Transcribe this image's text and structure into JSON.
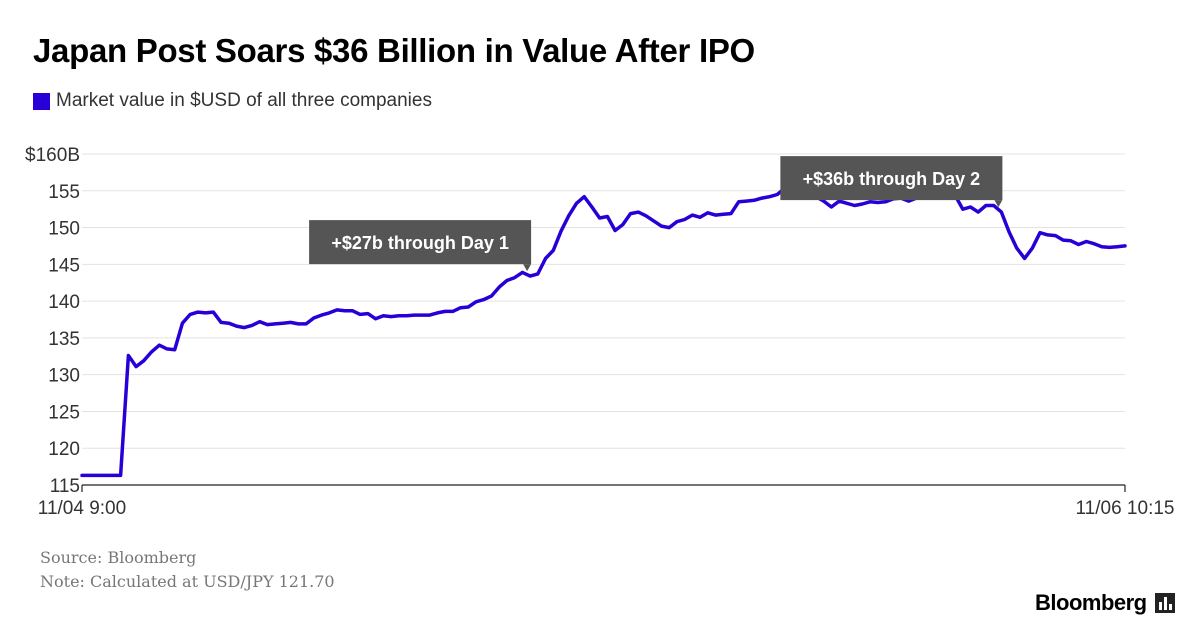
{
  "title": "Japan Post Soars $36 Billion in Value After IPO",
  "footer": {
    "source": "Source: Bloomberg",
    "note": "Note: Calculated at USD/JPY 121.70",
    "brand": "Bloomberg",
    "brand_icon": "bar-chart-icon"
  },
  "colors": {
    "series": "#2800d7",
    "annotation_bg": "#555555",
    "grid": "#e3e3e3"
  },
  "chart_data": {
    "type": "line",
    "legend": "Market value in $USD of all three companies",
    "xlabel": "",
    "ylabel": "",
    "x_tick_labels": [
      "11/04 9:00",
      "11/06 10:15"
    ],
    "ylim": [
      115,
      160
    ],
    "yticks": [
      115,
      120,
      125,
      130,
      135,
      140,
      145,
      150,
      155,
      160
    ],
    "ytick_labels": [
      "115",
      "120",
      "125",
      "130",
      "135",
      "140",
      "145",
      "150",
      "155",
      "$160B"
    ],
    "grid": true,
    "series": [
      {
        "name": "Market value in $USD of all three companies",
        "values": [
          116.3,
          116.3,
          116.3,
          116.3,
          116.3,
          116.3,
          132.6,
          131.1,
          131.9,
          133.1,
          134.0,
          133.5,
          133.4,
          137.0,
          138.2,
          138.5,
          138.4,
          138.5,
          137.1,
          137.0,
          136.6,
          136.4,
          136.7,
          137.2,
          136.8,
          136.9,
          137.0,
          137.1,
          136.9,
          136.9,
          137.7,
          138.1,
          138.4,
          138.8,
          138.7,
          138.7,
          138.2,
          138.3,
          137.6,
          138.0,
          137.9,
          138.0,
          138.0,
          138.1,
          138.1,
          138.1,
          138.4,
          138.6,
          138.6,
          139.1,
          139.2,
          139.9,
          140.2,
          140.7,
          141.9,
          142.8,
          143.2,
          143.9,
          143.4,
          143.7,
          145.8,
          146.9,
          149.5,
          151.6,
          153.3,
          154.2,
          152.8,
          151.3,
          151.5,
          149.6,
          150.4,
          151.9,
          152.1,
          151.6,
          150.9,
          150.2,
          150.0,
          150.8,
          151.1,
          151.7,
          151.4,
          152.0,
          151.7,
          151.8,
          151.9,
          153.5,
          153.6,
          153.7,
          154.0,
          154.2,
          154.5,
          155.4,
          154.1,
          154.2,
          154.4,
          154.2,
          153.6,
          152.8,
          153.6,
          153.3,
          153.0,
          153.2,
          153.5,
          153.4,
          153.5,
          153.9,
          154.0,
          153.6,
          154.0,
          154.4,
          154.6,
          154.5,
          154.1,
          154.4,
          152.5,
          152.8,
          152.1,
          153.0,
          153.0,
          152.1,
          149.4,
          147.2,
          145.8,
          147.2,
          149.3,
          149.0,
          148.9,
          148.3,
          148.2,
          147.7,
          148.1,
          147.8,
          147.4,
          147.3,
          147.4,
          147.5
        ]
      }
    ],
    "annotations": [
      {
        "text": "+$27b through Day 1",
        "point_index": 58
      },
      {
        "text": "+$36b through Day 2",
        "point_index": 119
      }
    ]
  }
}
